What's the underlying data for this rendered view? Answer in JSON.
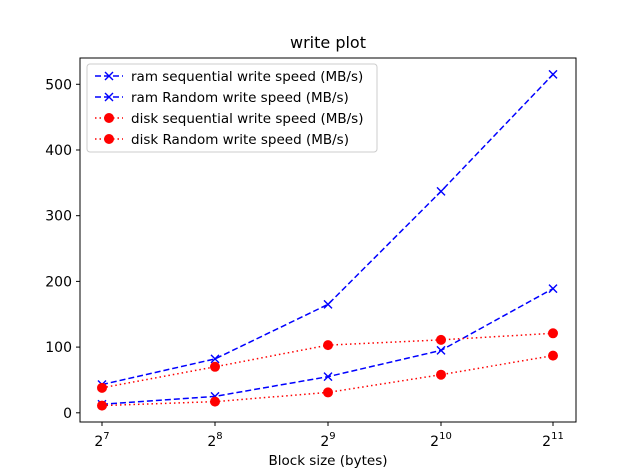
{
  "chart_data": {
    "type": "line",
    "title": "write plot",
    "xlabel": "Block size (bytes)",
    "ylabel": "",
    "x_scale": "log2",
    "x": [
      128,
      256,
      512,
      1024,
      2048
    ],
    "x_tick_labels": [
      {
        "base": "2",
        "exp": "7"
      },
      {
        "base": "2",
        "exp": "8"
      },
      {
        "base": "2",
        "exp": "9"
      },
      {
        "base": "2",
        "exp": "10"
      },
      {
        "base": "2",
        "exp": "11"
      }
    ],
    "y_ticks": [
      0,
      100,
      200,
      300,
      400,
      500
    ],
    "ylim": [
      -14,
      540
    ],
    "grid": false,
    "legend_position": "upper-left",
    "series": [
      {
        "name": "ram sequential write speed (MB/s)",
        "color": "#0000ff",
        "linestyle": "dashed",
        "marker": "x",
        "values": [
          43,
          82,
          165,
          337,
          515
        ]
      },
      {
        "name": "ram Random write speed (MB/s)",
        "color": "#0000ff",
        "linestyle": "dashed",
        "marker": "x",
        "values": [
          13,
          25,
          55,
          95,
          189
        ]
      },
      {
        "name": "disk sequential write speed (MB/s)",
        "color": "#ff0000",
        "linestyle": "dotted",
        "marker": "circle",
        "values": [
          38,
          70,
          103,
          111,
          121
        ]
      },
      {
        "name": "disk Random write speed (MB/s)",
        "color": "#ff0000",
        "linestyle": "dotted",
        "marker": "circle",
        "values": [
          11,
          17,
          31,
          58,
          87
        ]
      }
    ]
  }
}
